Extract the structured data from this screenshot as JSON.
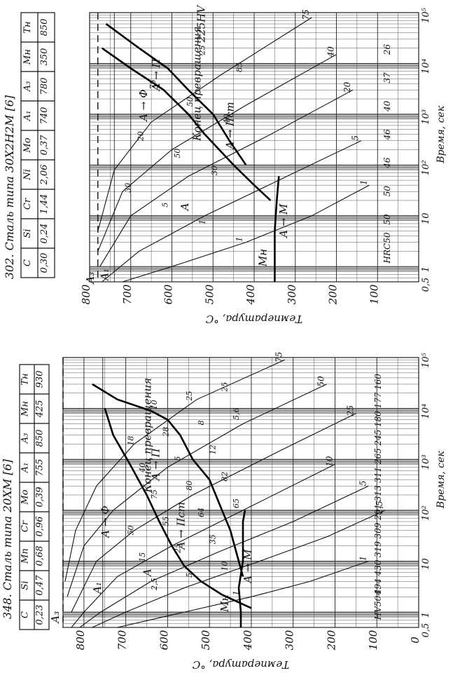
{
  "chart_data": [
    {
      "type": "line",
      "title": "348. Сталь типа 20ХМ [6]",
      "composition": {
        "headers": [
          "C",
          "Si",
          "Mn",
          "Cr",
          "Mo",
          "A₁",
          "A₃",
          "Mн",
          "Tн"
        ],
        "values": [
          "0,23",
          "0,47",
          "0,68",
          "0,96",
          "0,39",
          "755",
          "850",
          "425",
          "930"
        ]
      },
      "xlabel": "Время, сек",
      "ylabel": "Температура, °С",
      "x_scale": "log",
      "xlim": [
        0.5,
        100000
      ],
      "ylim": [
        0,
        850
      ],
      "x_ticks": [
        "0,5",
        "1",
        "10",
        "10²",
        "10³",
        "10⁴",
        "10⁵"
      ],
      "y_ticks": [
        "0",
        "100",
        "200",
        "300",
        "400",
        "500",
        "600",
        "700",
        "800"
      ],
      "grid": true,
      "region_labels": [
        "A₃",
        "A₁",
        "A",
        "A → Ф",
        "A → П",
        "A → IIст",
        "A → M",
        "Mн",
        "Конец превращения"
      ],
      "curve_labels": [
        "1",
        "2,5",
        "5",
        "10",
        "15",
        "25",
        "35",
        "50",
        "55",
        "64",
        "65",
        "75",
        "80",
        "82",
        "40",
        "5",
        "12",
        "18",
        "28",
        "8",
        "5,6",
        "10",
        "25",
        "25"
      ],
      "hardness_labels": [
        "HV504",
        "494",
        "430",
        "319",
        "309",
        "291",
        "313",
        "311",
        "265",
        "245",
        "180",
        "177",
        "160"
      ],
      "critical_temperatures": {
        "A1": 755,
        "A3": 850,
        "Mn": 425
      },
      "start_curve": [
        [
          1.2,
          400
        ],
        [
          2.2,
          470
        ],
        [
          4,
          520
        ],
        [
          8,
          560
        ],
        [
          20,
          590
        ],
        [
          60,
          620
        ],
        [
          200,
          650
        ],
        [
          800,
          690
        ],
        [
          3000,
          730
        ],
        [
          10000,
          750
        ]
      ],
      "end_curve": [
        [
          5,
          420
        ],
        [
          10,
          430
        ],
        [
          20,
          440
        ],
        [
          40,
          450
        ],
        [
          100,
          470
        ],
        [
          400,
          500
        ],
        [
          1000,
          540
        ],
        [
          3000,
          570
        ],
        [
          6000,
          600
        ],
        [
          9000,
          640
        ],
        [
          15000,
          720
        ],
        [
          30000,
          780
        ]
      ],
      "ms_line": [
        [
          0.5,
          425
        ],
        [
          1,
          425
        ],
        [
          3,
          430
        ],
        [
          10,
          420
        ],
        [
          60,
          420
        ],
        [
          100,
          415
        ]
      ],
      "cooling_curves": [
        {
          "label": "1",
          "points": [
            [
              0.5,
              720
            ],
            [
              1,
              560
            ],
            [
              2,
              400
            ],
            [
              4,
              260
            ],
            [
              10,
              120
            ]
          ]
        },
        {
          "label": "2,5",
          "points": [
            [
              0.5,
              780
            ],
            [
              1,
              700
            ],
            [
              3,
              560
            ],
            [
              10,
              380
            ],
            [
              30,
              220
            ],
            [
              100,
              80
            ]
          ]
        },
        {
          "label": "5",
          "points": [
            [
              0.5,
              810
            ],
            [
              1,
              760
            ],
            [
              4,
              640
            ],
            [
              15,
              480
            ],
            [
              60,
              300
            ],
            [
              300,
              120
            ]
          ]
        },
        {
          "label": "10",
          "points": [
            [
              0.5,
              830
            ],
            [
              1,
              800
            ],
            [
              5,
              720
            ],
            [
              20,
              590
            ],
            [
              100,
              420
            ],
            [
              800,
              200
            ]
          ]
        },
        {
          "label": "25",
          "points": [
            [
              1,
              830
            ],
            [
              10,
              770
            ],
            [
              40,
              680
            ],
            [
              200,
              540
            ],
            [
              1500,
              330
            ],
            [
              8000,
              150
            ]
          ]
        },
        {
          "label": "50",
          "points": [
            [
              2,
              840
            ],
            [
              20,
              800
            ],
            [
              100,
              730
            ],
            [
              700,
              600
            ],
            [
              5000,
              420
            ],
            [
              30000,
              220
            ]
          ]
        },
        {
          "label": "75",
          "points": [
            [
              4,
              845
            ],
            [
              40,
              820
            ],
            [
              300,
              770
            ],
            [
              2000,
              680
            ],
            [
              15000,
              530
            ],
            [
              90000,
              320
            ]
          ]
        }
      ]
    },
    {
      "type": "line",
      "title": "302. Сталь типа 30Х2Н2М [6]",
      "composition": {
        "headers": [
          "C",
          "Si",
          "Cr",
          "Ni",
          "Mo",
          "A₁",
          "A₃",
          "Mн",
          "Tн"
        ],
        "values": [
          "0,30",
          "0,24",
          "1,44",
          "2,06",
          "0,37",
          "740",
          "780",
          "350",
          "850"
        ]
      },
      "xlabel": "Время, сек",
      "ylabel": "Температура, °С",
      "x_scale": "log",
      "xlim": [
        0.5,
        100000
      ],
      "ylim": [
        0,
        800
      ],
      "x_ticks": [
        "0,5",
        "1",
        "10",
        "10²",
        "10³",
        "10⁴",
        "10⁵"
      ],
      "y_ticks": [
        "100",
        "200",
        "300",
        "400",
        "500",
        "600",
        "700",
        "800"
      ],
      "grid": true,
      "region_labels": [
        "A₃",
        "A₁",
        "A",
        "A → Ф",
        "A → П",
        "A → IIст",
        "A → M",
        "Mн",
        "Конец превращения",
        "225HV"
      ],
      "curve_labels": [
        "1",
        "1",
        "5",
        "30",
        "30",
        "50",
        "20",
        "40",
        "50",
        "75",
        "85",
        "25"
      ],
      "hardness_labels": [
        "HRC50",
        "50",
        "50",
        "46",
        "46",
        "40",
        "37",
        "26"
      ],
      "critical_temperatures": {
        "A1": 740,
        "A3": 780,
        "Mn": 350
      },
      "start_curve": [
        [
          20,
          360
        ],
        [
          40,
          400
        ],
        [
          100,
          450
        ],
        [
          400,
          520
        ],
        [
          1000,
          560
        ],
        [
          3000,
          620
        ],
        [
          8000,
          700
        ],
        [
          20000,
          770
        ]
      ],
      "end_curve": [
        [
          100,
          420
        ],
        [
          300,
          460
        ],
        [
          1000,
          500
        ],
        [
          3000,
          560
        ],
        [
          8000,
          610
        ],
        [
          20000,
          680
        ],
        [
          60000,
          760
        ]
      ],
      "ms_line": [
        [
          0.5,
          350
        ],
        [
          5,
          350
        ],
        [
          20,
          345
        ],
        [
          60,
          340
        ]
      ],
      "cooling_curves": [
        {
          "label": "1",
          "points": [
            [
              0.5,
              720
            ],
            [
              1,
              600
            ],
            [
              3,
              420
            ],
            [
              10,
              260
            ],
            [
              40,
              120
            ]
          ]
        },
        {
          "label": "5",
          "points": [
            [
              0.5,
              770
            ],
            [
              2,
              680
            ],
            [
              10,
              520
            ],
            [
              60,
              320
            ],
            [
              300,
              140
            ]
          ]
        },
        {
          "label": "20",
          "points": [
            [
              1,
              775
            ],
            [
              10,
              700
            ],
            [
              60,
              560
            ],
            [
              400,
              360
            ],
            [
              3000,
              160
            ]
          ]
        },
        {
          "label": "40",
          "points": [
            [
              2,
              780
            ],
            [
              30,
              720
            ],
            [
              200,
              600
            ],
            [
              1500,
              420
            ],
            [
              15000,
              200
            ]
          ]
        },
        {
          "label": "75",
          "points": [
            [
              5,
              780
            ],
            [
              80,
              740
            ],
            [
              700,
              650
            ],
            [
              6000,
              480
            ],
            [
              80000,
              260
            ]
          ]
        }
      ]
    }
  ]
}
